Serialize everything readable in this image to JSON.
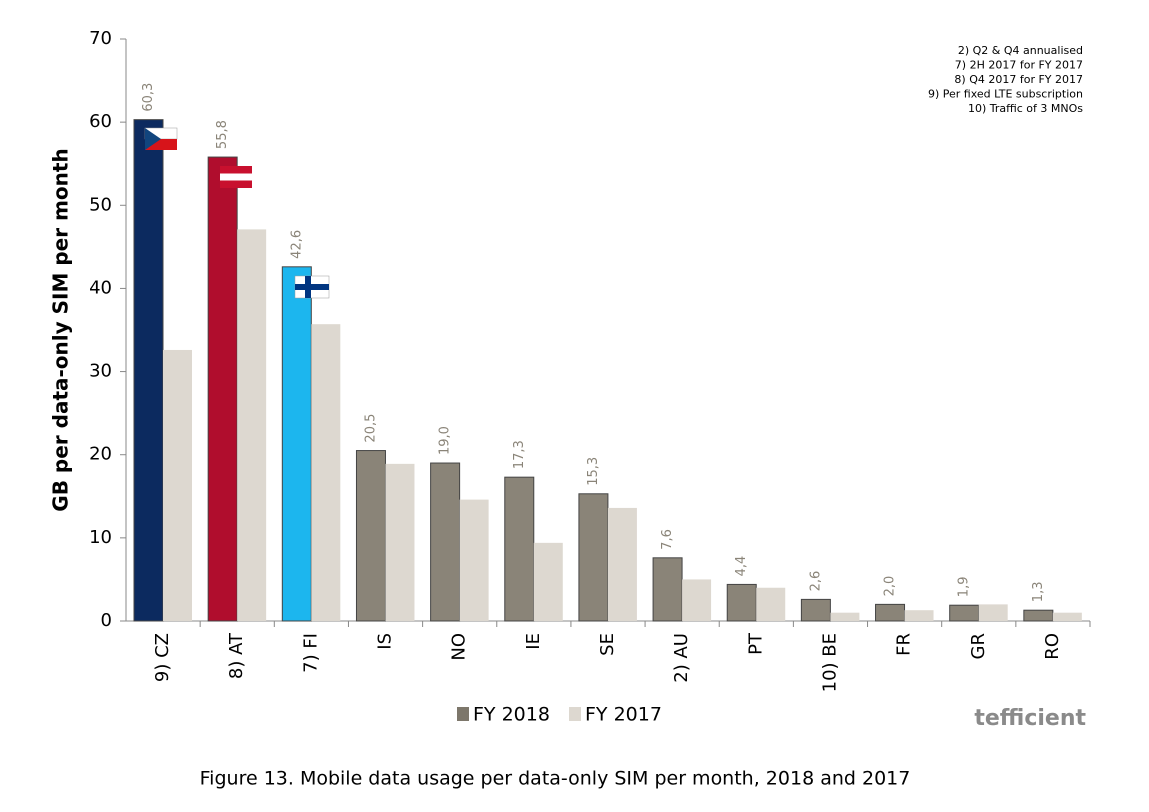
{
  "chart_data": {
    "type": "bar",
    "y_label": "GB per data-only SIM per month",
    "caption": "Figure 13.  Mobile data usage per data-only SIM per month, 2018 and 2017",
    "annotations": [
      "2) Q2 & Q4 annualised",
      "7) 2H 2017 for FY 2017",
      "8) Q4 2017 for FY 2017",
      "9) Per fixed LTE subscription",
      "10) Traffic of 3 MNOs"
    ],
    "logo": "tefficient",
    "categories": [
      "9) CZ",
      "8) AT",
      "7) FI",
      "IS",
      "NO",
      "IE",
      "SE",
      "2) AU",
      "PT",
      "10) BE",
      "FR",
      "GR",
      "RO"
    ],
    "series": [
      {
        "name": "FY 2018",
        "color": "#7d776b",
        "colors": [
          "#0c2a5f",
          "#b00d2d",
          "#1cb6ee",
          "#8a8478",
          "#8a8478",
          "#8a8478",
          "#8a8478",
          "#8a8478",
          "#8a8478",
          "#8a8478",
          "#8a8478",
          "#8a8478",
          "#8a8478"
        ],
        "values": [
          60.3,
          55.8,
          42.6,
          20.5,
          19.0,
          17.3,
          15.3,
          7.6,
          4.4,
          2.6,
          2.0,
          1.9,
          1.3
        ],
        "value_labels": [
          "60,3",
          "55,8",
          "42,6",
          "20,5",
          "19,0",
          "17,3",
          "15,3",
          "7,6",
          "4,4",
          "2,6",
          "2,0",
          "1,9",
          "1,3"
        ]
      },
      {
        "name": "FY 2017",
        "color": "#ddd8d0",
        "values": [
          32.6,
          47.1,
          35.7,
          18.9,
          14.6,
          9.4,
          13.6,
          5.0,
          4.0,
          1.0,
          1.3,
          2.0,
          1.0
        ]
      }
    ],
    "ylim": [
      0,
      70
    ],
    "yticks": [
      0,
      10,
      20,
      30,
      40,
      50,
      60,
      70
    ],
    "grid": false,
    "legend": "bottom"
  }
}
